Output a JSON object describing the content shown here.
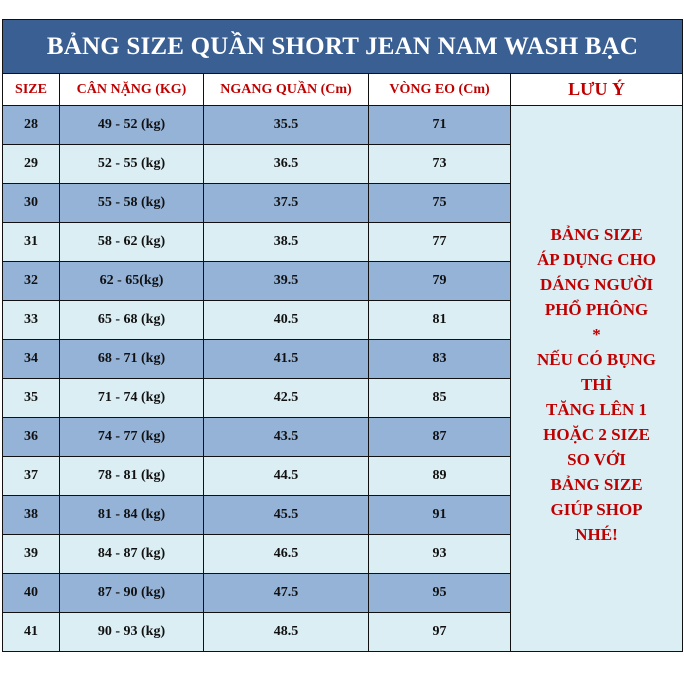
{
  "title": "BẢNG SIZE QUẦN SHORT JEAN NAM WASH BẠC",
  "headers": [
    "SIZE",
    "CÂN NẶNG (KG)",
    "NGANG QUẦN (Cm)",
    "VÒNG EO (Cm)",
    "LƯU Ý"
  ],
  "rows": [
    [
      "28",
      "49 - 52 (kg)",
      "35.5",
      "71"
    ],
    [
      "29",
      "52 - 55 (kg)",
      "36.5",
      "73"
    ],
    [
      "30",
      "55 - 58 (kg)",
      "37.5",
      "75"
    ],
    [
      "31",
      "58 - 62 (kg)",
      "38.5",
      "77"
    ],
    [
      "32",
      "62 - 65(kg)",
      "39.5",
      "79"
    ],
    [
      "33",
      "65 - 68 (kg)",
      "40.5",
      "81"
    ],
    [
      "34",
      "68 - 71 (kg)",
      "41.5",
      "83"
    ],
    [
      "35",
      "71 - 74 (kg)",
      "42.5",
      "85"
    ],
    [
      "36",
      "74 - 77 (kg)",
      "43.5",
      "87"
    ],
    [
      "37",
      "78 - 81 (kg)",
      "44.5",
      "89"
    ],
    [
      "38",
      "81 - 84 (kg)",
      "45.5",
      "91"
    ],
    [
      "39",
      "84 - 87 (kg)",
      "46.5",
      "93"
    ],
    [
      "40",
      "87 - 90 (kg)",
      "47.5",
      "95"
    ],
    [
      "41",
      "90 - 93 (kg)",
      "48.5",
      "97"
    ]
  ],
  "note_lines": [
    "BẢNG SIZE",
    "ÁP DỤNG CHO",
    "DÁNG NGƯỜI",
    "PHỔ PHÔNG",
    "*",
    "NẾU CÓ BỤNG",
    "THÌ",
    "TĂNG LÊN 1",
    "HOẶC 2 SIZE",
    "SO VỚI",
    "BẢNG SIZE",
    "GIÚP SHOP",
    "NHÉ!"
  ],
  "colors": {
    "title_bg": "#3a5f92",
    "row_dark": "#95b3d7",
    "row_light": "#dbeef3",
    "accent_red": "#c00000"
  }
}
